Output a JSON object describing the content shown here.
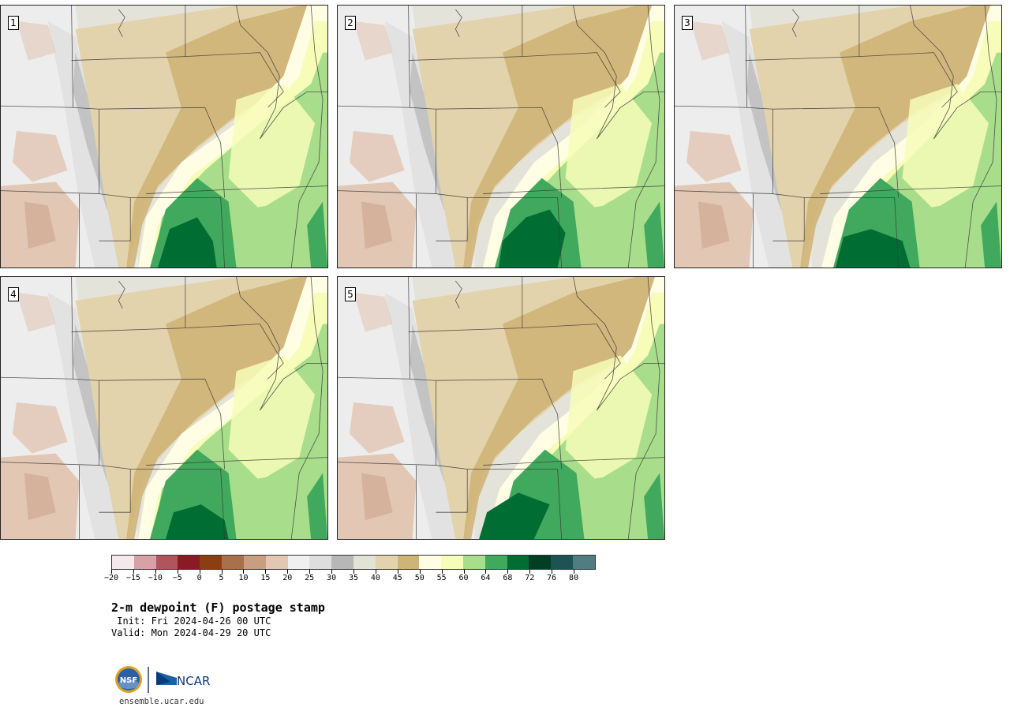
{
  "stamps": [
    {
      "label": "1",
      "variant": 0
    },
    {
      "label": "2",
      "variant": 1
    },
    {
      "label": "3",
      "variant": 2
    },
    {
      "label": "4",
      "variant": 3
    },
    {
      "label": "5",
      "variant": 4
    }
  ],
  "colorbar": {
    "colors": [
      "#f4e9ea",
      "#d7a1a6",
      "#b0545d",
      "#8a1a23",
      "#8b3f10",
      "#a9704c",
      "#c89d82",
      "#e2c7b5",
      "#f0f0f0",
      "#dedede",
      "#b7b7b7",
      "#e2e2d6",
      "#e3d3ac",
      "#cfb477",
      "#fffde4",
      "#f7fdb8",
      "#a8dd8b",
      "#41a95d",
      "#006e33",
      "#003f23",
      "#1d5354",
      "#507c82"
    ],
    "tick_labels": [
      "-20",
      "-15",
      "-10",
      "-5",
      "0",
      "5",
      "10",
      "15",
      "20",
      "25",
      "30",
      "35",
      "40",
      "45",
      "50",
      "55",
      "60",
      "64",
      "68",
      "72",
      "76",
      "80"
    ]
  },
  "title": "2-m dewpoint (F) postage stamp",
  "init": " Init: Fri 2024-04-26 00 UTC",
  "valid": "Valid: Mon 2024-04-29 20 UTC",
  "logos": {
    "nsf": "NSF",
    "ncar": "NCAR"
  },
  "site": "ensemble.ucar.edu"
}
